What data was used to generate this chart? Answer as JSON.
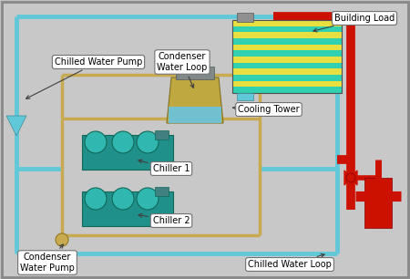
{
  "bg_color": "#c0c0c0",
  "inner_bg": "#c8c8c8",
  "chilled_water_loop_color": "#60c8d8",
  "condenser_water_loop_color": "#c8aa50",
  "building_load_pipe_color": "#cc1100",
  "building_load_colors": [
    "#e8e040",
    "#30d0b0",
    "#e8e040",
    "#30d0b0",
    "#e8e040",
    "#30d0b0",
    "#e8e040",
    "#30d0b0",
    "#e8e040",
    "#30d0b0",
    "#e8e040",
    "#30d0b0"
  ],
  "chiller_body_color": "#20908a",
  "chiller_bump_color": "#30b8b0",
  "chiller_dark": "#106858",
  "labels": {
    "chilled_water_pump": "Chilled Water Pump",
    "condenser_water_loop": "Condenser\nWater Loop",
    "cooling_tower": "Cooling Tower",
    "building_load": "Building Load",
    "chiller1": "Chiller 1",
    "chiller2": "Chiller 2",
    "condenser_water_pump": "Condenser\nWater Pump",
    "chilled_water_loop": "Chilled Water Loop"
  },
  "cwl_lw": 3.5,
  "cdwl_lw": 2.5,
  "red_pipe_lw": 7,
  "annotation_fontsize": 7,
  "title_fontsize": 8,
  "figsize": [
    4.5,
    3.06
  ],
  "dpi": 100
}
